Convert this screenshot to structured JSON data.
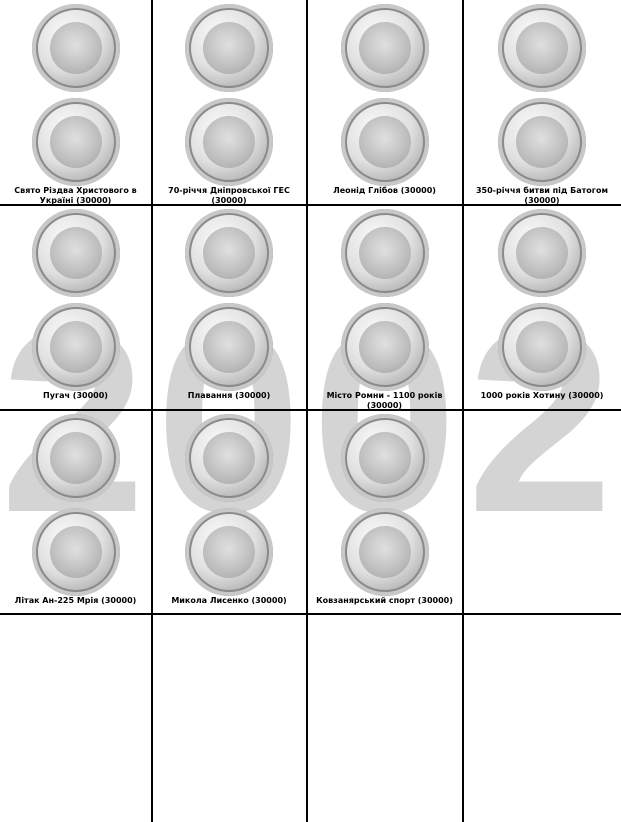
{
  "watermark": "2002",
  "rows": [
    [
      "Свято Різдва Христового в Україні (30000)",
      "70-річчя Дніпровської ГЕС (30000)",
      "Леонід Глібов (30000)",
      "350-річчя битви під Батогом (30000)"
    ],
    [
      "Пугач (30000)",
      "Плавання (30000)",
      "Місто Ромни - 1100 років (30000)",
      "1000 років Хотину (30000)"
    ],
    [
      "Літак Ан-225 Мрія (30000)",
      "Микола Лисенко (30000)",
      "Ковзанярський спорт (30000)"
    ]
  ]
}
